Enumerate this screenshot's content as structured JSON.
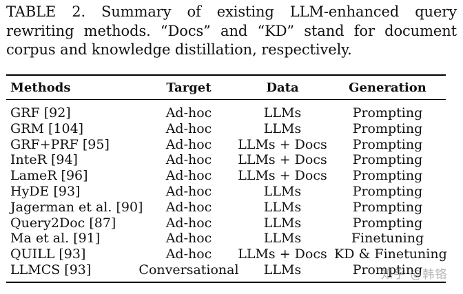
{
  "caption": "TABLE 2. Summary of existing LLM-enhanced query rewriting methods. “Docs” and “KD” stand for document corpus and knowledge distillation, respectively.",
  "table": {
    "headers": [
      "Methods",
      "Target",
      "Data",
      "Generation"
    ],
    "rows": [
      [
        "GRF [92]",
        "Ad-hoc",
        "LLMs",
        "Prompting"
      ],
      [
        "GRM [104]",
        "Ad-hoc",
        "LLMs",
        "Prompting"
      ],
      [
        "GRF+PRF [95]",
        "Ad-hoc",
        "LLMs + Docs",
        "Prompting"
      ],
      [
        "InteR [94]",
        "Ad-hoc",
        "LLMs + Docs",
        "Prompting"
      ],
      [
        "LameR [96]",
        "Ad-hoc",
        "LLMs + Docs",
        "Prompting"
      ],
      [
        "HyDE [93]",
        "Ad-hoc",
        "LLMs",
        "Prompting"
      ],
      [
        "Jagerman et al. [90]",
        "Ad-hoc",
        "LLMs",
        "Prompting"
      ],
      [
        "Query2Doc [87]",
        "Ad-hoc",
        "LLMs",
        "Prompting"
      ],
      [
        "Ma et al. [91]",
        "Ad-hoc",
        "LLMs",
        "Finetuning"
      ],
      [
        "QUILL [93]",
        "Ad-hoc",
        "LLMs + Docs",
        "KD & Finetuning"
      ],
      [
        "LLMCS [93]",
        "Conversational",
        "LLMs",
        "Prompting"
      ]
    ]
  },
  "watermark": "知乎 @韩铬"
}
